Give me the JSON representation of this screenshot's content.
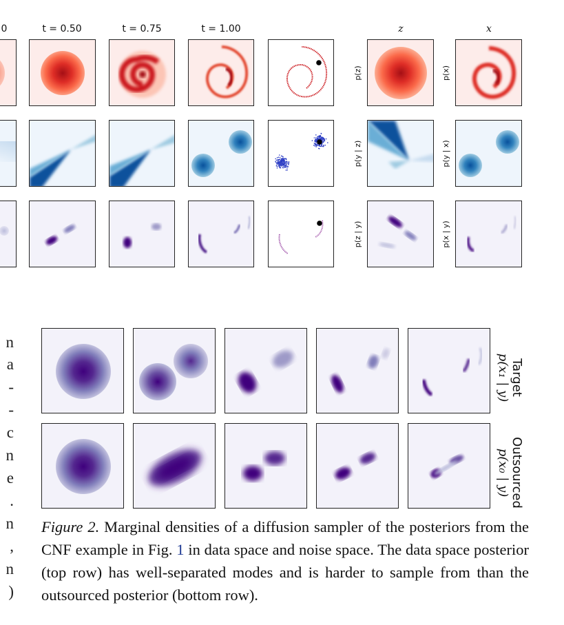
{
  "figure1_col_titles": {
    "t0": "0",
    "t050": "t = 0.50",
    "t075": "t = 0.75",
    "t100": "t = 1.00",
    "z": "z",
    "x": "x"
  },
  "figure1_row_labels": {
    "pz": "p(z)",
    "px": "p(x)",
    "pyz": "p(y | z)",
    "pyx": "p(y | x)",
    "pzy": "p(z | y)",
    "pxy": "p(x | y)"
  },
  "figure2_side_labels": {
    "target_title": "Target",
    "target_sub": "p(x₁ | y)",
    "outsourced_title": "Outsourced",
    "outsourced_sub": "p(x₀ | y)"
  },
  "left_margin_fragments": [
    "n",
    "a",
    "-",
    "-",
    "c",
    "n",
    "e",
    ".",
    "n",
    ",",
    "n",
    ")"
  ],
  "caption": {
    "label": "Figure 2.",
    "text_before_ref": " Marginal densities of a diffusion sampler of the posteriors from the CNF example in Fig. ",
    "ref": "1",
    "text_after_ref": " in data space and noise space. The data space posterior (top row) has well-separated modes and is harder to sample from than the outsourced posterior (bottom row)."
  },
  "colors": {
    "red_dark": "#b2182b",
    "red_light": "#fdecea",
    "blue_dark": "#08519c",
    "blue_light": "#eef5fc",
    "purple_dark": "#3f007d",
    "purple_light": "#f3f2fa"
  }
}
